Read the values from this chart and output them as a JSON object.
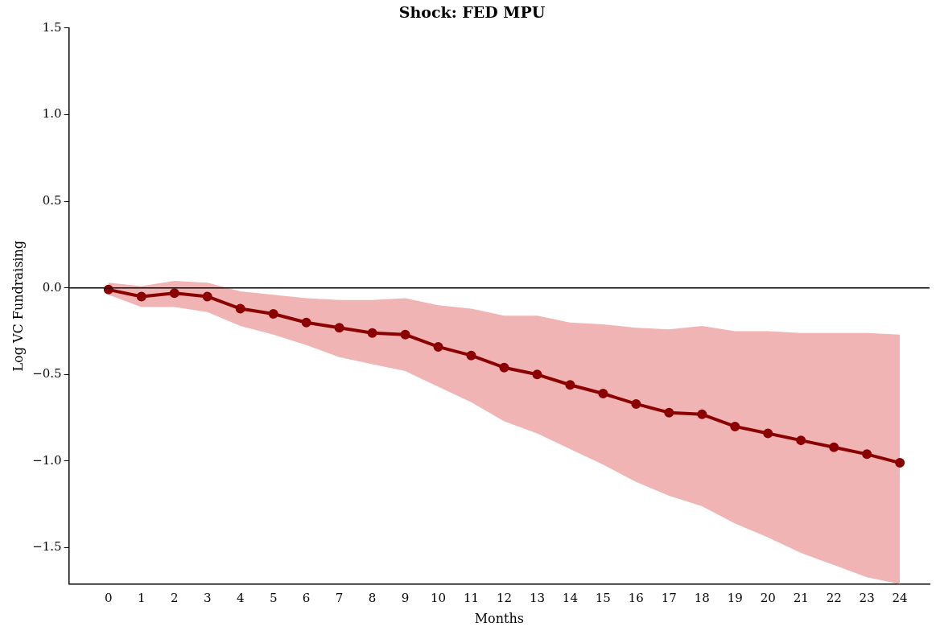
{
  "chart_data": {
    "type": "line",
    "title": "Shock: FED MPU",
    "xlabel": "Months",
    "ylabel": "Log VC Fundraising",
    "x": [
      0,
      1,
      2,
      3,
      4,
      5,
      6,
      7,
      8,
      9,
      10,
      11,
      12,
      13,
      14,
      15,
      16,
      17,
      18,
      19,
      20,
      21,
      22,
      23,
      24
    ],
    "series": [
      {
        "color": "#8b0000",
        "values": [
          -0.01,
          -0.05,
          -0.03,
          -0.05,
          -0.12,
          -0.15,
          -0.2,
          -0.23,
          -0.26,
          -0.27,
          -0.34,
          -0.39,
          -0.46,
          -0.5,
          -0.56,
          -0.61,
          -0.67,
          -0.72,
          -0.73,
          -0.8,
          -0.84,
          -0.88,
          -0.92,
          -0.96,
          -1.01
        ],
        "upper": [
          0.03,
          0.01,
          0.04,
          0.03,
          -0.02,
          -0.04,
          -0.06,
          -0.07,
          -0.07,
          -0.06,
          -0.1,
          -0.12,
          -0.16,
          -0.16,
          -0.2,
          -0.21,
          -0.23,
          -0.24,
          -0.22,
          -0.25,
          -0.25,
          -0.26,
          -0.26,
          -0.26,
          -0.27
        ],
        "lower": [
          -0.04,
          -0.11,
          -0.11,
          -0.14,
          -0.22,
          -0.27,
          -0.33,
          -0.4,
          -0.44,
          -0.48,
          -0.57,
          -0.66,
          -0.77,
          -0.84,
          -0.93,
          -1.02,
          -1.12,
          -1.2,
          -1.26,
          -1.36,
          -1.44,
          -1.53,
          -1.6,
          -1.67,
          -1.71
        ]
      }
    ],
    "xlim": [
      -1.2,
      24.9
    ],
    "xticks": [
      0,
      1,
      2,
      3,
      4,
      5,
      6,
      7,
      8,
      9,
      10,
      11,
      12,
      13,
      14,
      15,
      16,
      17,
      18,
      19,
      20,
      21,
      22,
      23,
      24
    ],
    "ylim": [
      -1.71,
      1.5
    ],
    "yticks": [
      {
        "value": -1.5,
        "label": "−1.5"
      },
      {
        "value": -1.0,
        "label": "−1.0"
      },
      {
        "value": -0.5,
        "label": "−0.5"
      },
      {
        "value": 0,
        "label": "0.0"
      },
      {
        "value": 0.5,
        "label": "0.5"
      },
      {
        "value": 1.0,
        "label": "1.0"
      },
      {
        "value": 1.5,
        "label": "1.5"
      }
    ],
    "ref_lines": [
      {
        "axis": "y",
        "value": 0,
        "color": "#000000"
      }
    ],
    "grid": false,
    "legend": false,
    "marker": "circle",
    "line_style": "solid"
  }
}
